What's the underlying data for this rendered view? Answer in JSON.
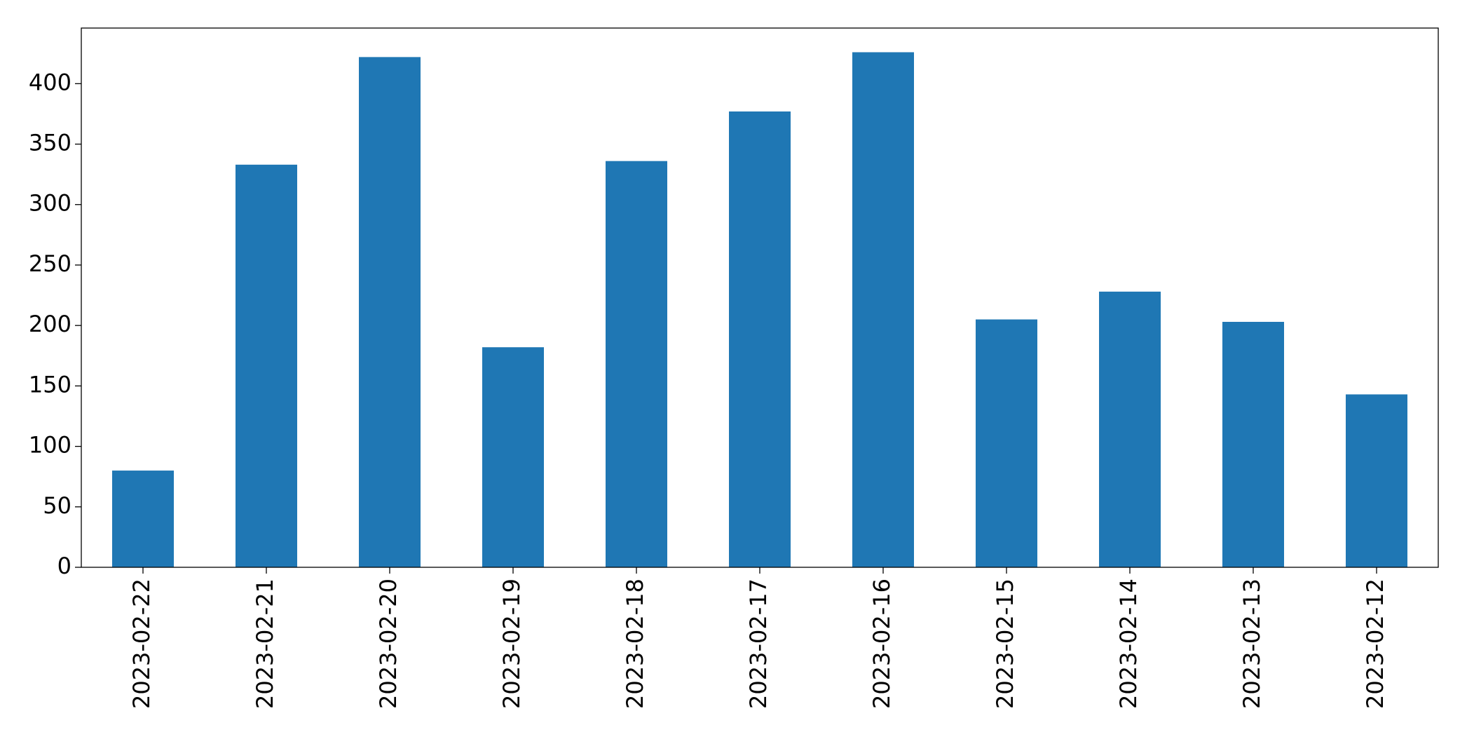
{
  "chart_data": {
    "type": "bar",
    "categories": [
      "2023-02-22",
      "2023-02-21",
      "2023-02-20",
      "2023-02-19",
      "2023-02-18",
      "2023-02-17",
      "2023-02-16",
      "2023-02-15",
      "2023-02-14",
      "2023-02-13",
      "2023-02-12"
    ],
    "values": [
      80,
      333,
      422,
      182,
      336,
      377,
      426,
      205,
      228,
      203,
      143
    ],
    "color": "#1f77b4",
    "ylim": [
      0,
      446
    ],
    "yticks": [
      0,
      50,
      100,
      150,
      200,
      250,
      300,
      350,
      400
    ],
    "grid": false
  }
}
